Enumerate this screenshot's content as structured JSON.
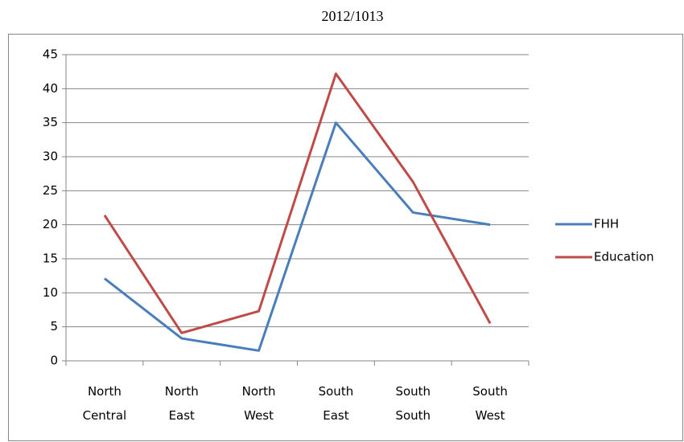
{
  "chart_data": {
    "type": "line",
    "title": "2012/1013",
    "categories": [
      "North Central",
      "North East",
      "North West",
      "South East",
      "South South",
      "South West"
    ],
    "series": [
      {
        "name": "FHH",
        "color": "#4a7ebb",
        "values": [
          12.1,
          3.3,
          1.5,
          35,
          21.8,
          20
        ]
      },
      {
        "name": "Education",
        "color": "#be4b48",
        "values": [
          21.4,
          4.1,
          7.3,
          42.2,
          26.3,
          5.5
        ]
      }
    ],
    "ylim": [
      0,
      45
    ],
    "yticks": [
      0,
      5,
      10,
      15,
      20,
      25,
      30,
      35,
      40,
      45
    ],
    "grid": true,
    "legend": "right"
  }
}
